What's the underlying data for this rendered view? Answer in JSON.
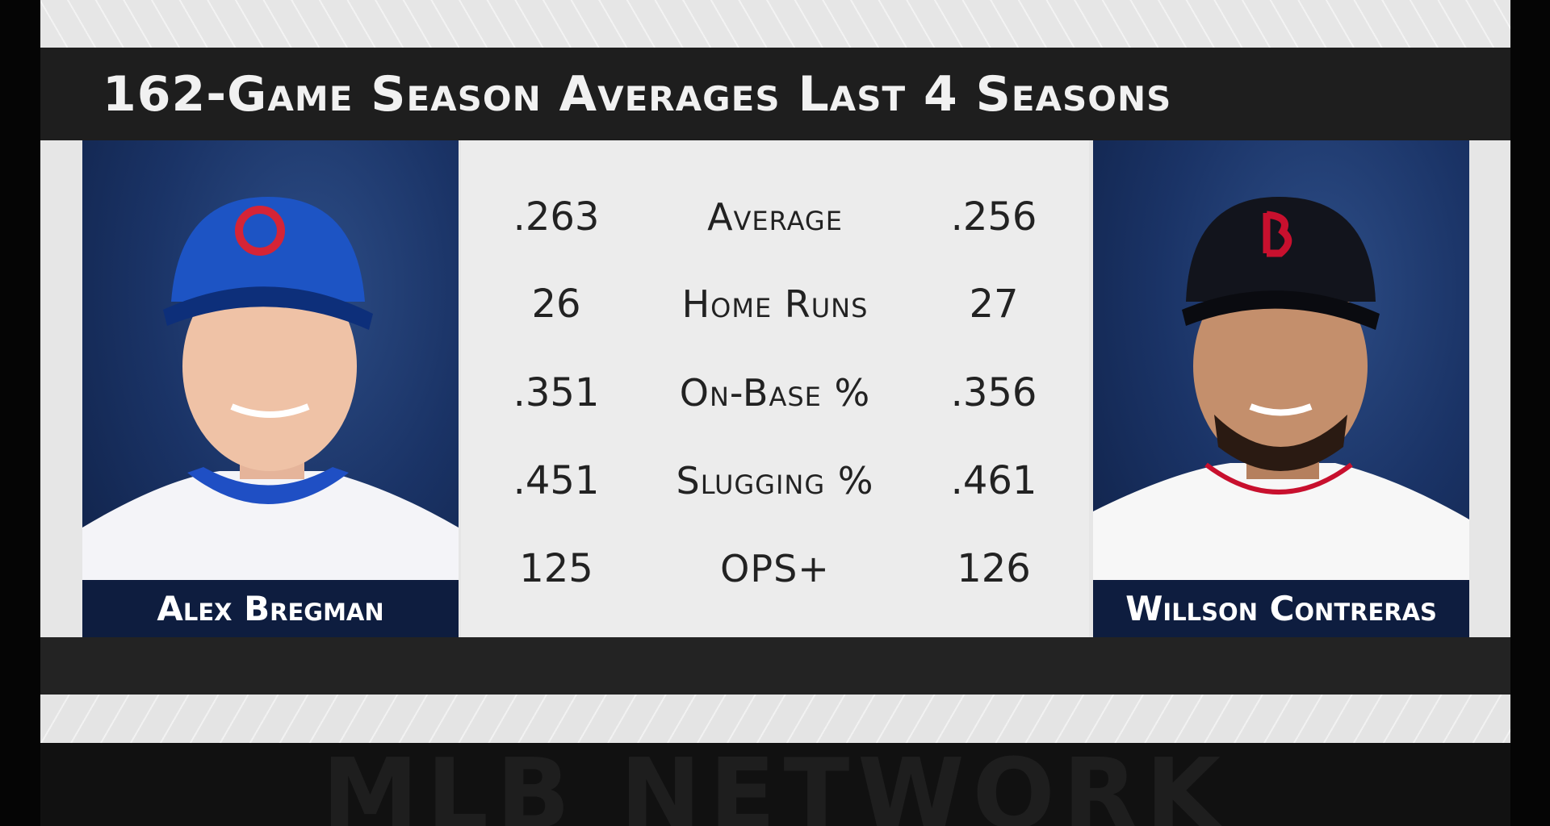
{
  "header": {
    "title": "162-Game Season Averages Last 4 Seasons"
  },
  "players": [
    {
      "name": "Alex Bregman"
    },
    {
      "name": "Willson Contreras"
    }
  ],
  "stats": {
    "rows": [
      {
        "left": ".263",
        "label": "Average",
        "right": ".256"
      },
      {
        "left": "26",
        "label": "Home Runs",
        "right": "27"
      },
      {
        "left": ".351",
        "label": "On-Base %",
        "right": ".356"
      },
      {
        "left": ".451",
        "label": "Slugging %",
        "right": ".461"
      },
      {
        "left": "125",
        "label": "OPS+",
        "right": "126"
      }
    ]
  },
  "footer": {
    "watermark": "MLB Network"
  }
}
